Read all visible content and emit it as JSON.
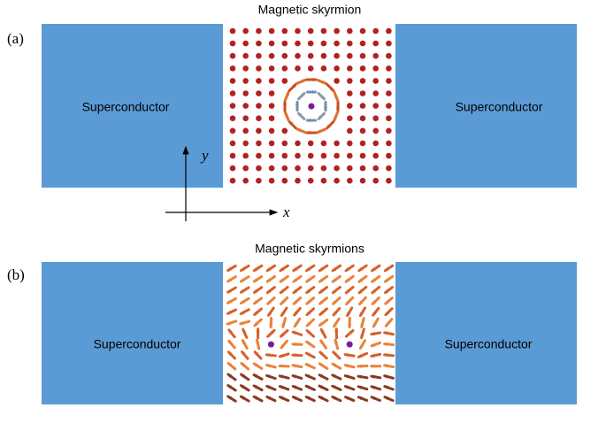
{
  "panels": [
    {
      "label": "(a)",
      "title": "Magnetic skyrmion",
      "left": "Superconductor",
      "right": "Superconductor",
      "axis_y": "y",
      "axis_x": "x"
    },
    {
      "label": "(b)",
      "title": "Magnetic skyrmions",
      "left": "Superconductor",
      "right": "Superconductor"
    }
  ]
}
